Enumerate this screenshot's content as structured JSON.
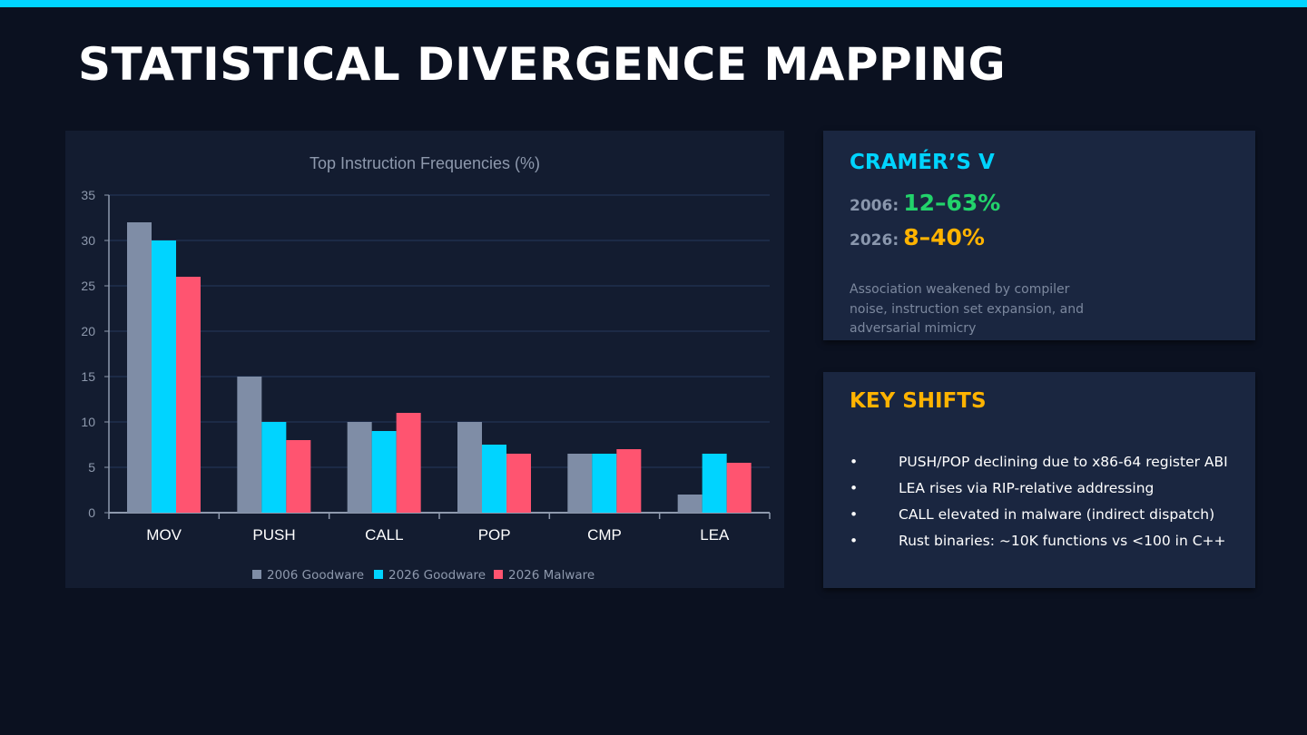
{
  "page": {
    "title": "STATISTICAL DIVERGENCE MAPPING",
    "accent_color": "#00d4ff",
    "background_color": "#0b1120"
  },
  "chart_data": {
    "type": "bar",
    "title": "Top Instruction Frequencies (%)",
    "categories": [
      "MOV",
      "PUSH",
      "CALL",
      "POP",
      "CMP",
      "LEA"
    ],
    "series": [
      {
        "name": "2006 Goodware",
        "color": "#7f8da6",
        "values": [
          32,
          15,
          10,
          10,
          6.5,
          2
        ]
      },
      {
        "name": "2026 Goodware",
        "color": "#00d4ff",
        "values": [
          30,
          10,
          9,
          7.5,
          6.5,
          6.5
        ]
      },
      {
        "name": "2026 Malware",
        "color": "#ff5470",
        "values": [
          26,
          8,
          11,
          6.5,
          7,
          5.5
        ]
      }
    ],
    "yticks": [
      0,
      5,
      10,
      15,
      20,
      25,
      30,
      35
    ],
    "ylim": [
      0,
      35
    ],
    "xlabel": "",
    "ylabel": "",
    "grid": true,
    "legend_position": "bottom"
  },
  "cramers": {
    "heading": "CRAMÉR’S V",
    "heading_color": "#00d4ff",
    "rows": [
      {
        "year": "2006:",
        "value": "12–63%",
        "color": "#22d36b"
      },
      {
        "year": "2026:",
        "value": "8–40%",
        "color": "#ffb300"
      }
    ],
    "note": "Association weakened by compiler noise, instruction set expansion, and adversarial mimicry"
  },
  "shifts": {
    "heading": "KEY SHIFTS",
    "heading_color": "#ffb300",
    "bullet": "•",
    "items": [
      "PUSH/POP declining due to x86-64 register ABI",
      "LEA rises via RIP-relative addressing",
      "CALL elevated in malware (indirect dispatch)",
      "Rust binaries: ~10K functions vs <100 in C++"
    ]
  }
}
